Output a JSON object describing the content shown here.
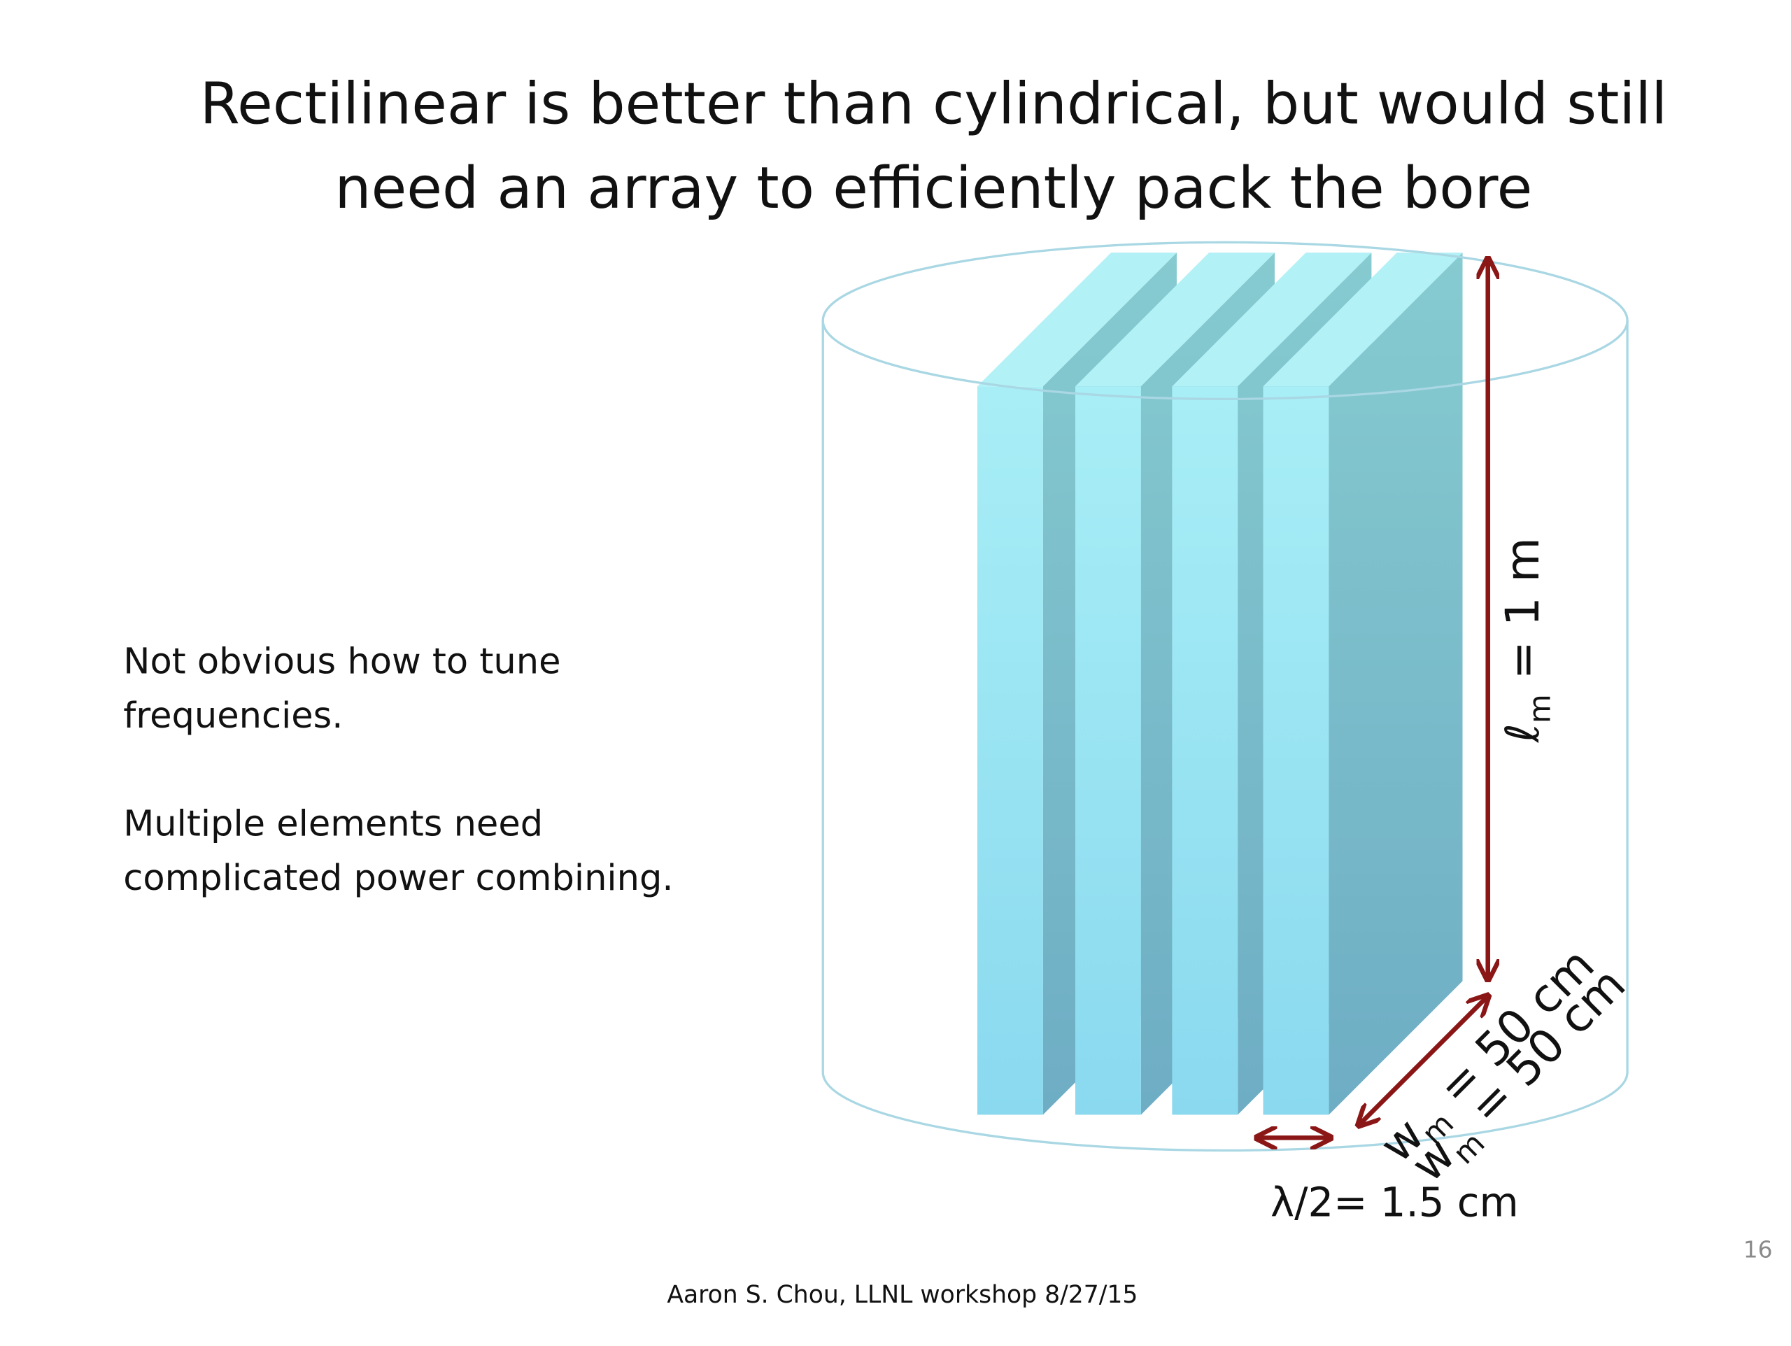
{
  "title": [
    "Rectilinear is better than cylindrical, but would still",
    "need an array to efficiently pack the bore"
  ],
  "notes": [
    [
      "Not obvious how to tune",
      "frequencies."
    ],
    [
      "Multiple elements need",
      "complicated power combining."
    ]
  ],
  "labels": {
    "length": {
      "symbol": "ℓ",
      "sub": "m",
      "rest": " = 1 m"
    },
    "width": [
      {
        "symbol": "w",
        "sub": "m",
        "rest": " = 50 cm"
      },
      {
        "symbol": "w",
        "sub": "m",
        "rest": " = 50 cm"
      }
    ],
    "spacing": "λ/2= 1.5 cm"
  },
  "footer": "Aaron S. Chou, LLNL workshop 8/27/15",
  "page_number": "16"
}
